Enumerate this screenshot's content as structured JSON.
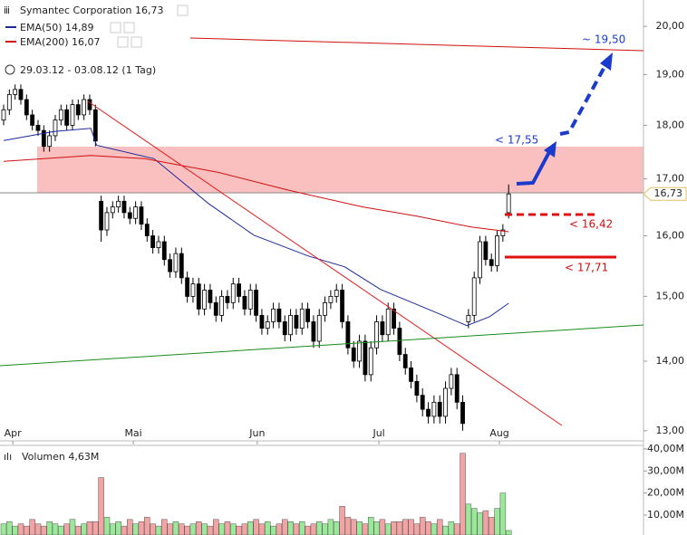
{
  "chart_data": {
    "type": "candlestick",
    "title": "Symantec Corporation 16,73",
    "date_range": "29.03.12 - 03.08.12 (1 Tag)",
    "last_price_label": "16,73",
    "log_scale": true,
    "xlim": [
      -0.63,
      111.5
    ],
    "xticks": [
      {
        "value": 1.6,
        "label": "Apr"
      },
      {
        "value": 22.6,
        "label": "Mai"
      },
      {
        "value": 44.2,
        "label": "Jun"
      },
      {
        "value": 65.4,
        "label": "Jul"
      },
      {
        "value": 86.4,
        "label": "Aug"
      }
    ],
    "ylim": [
      12.86,
      20.57
    ],
    "yticks": [
      {
        "value": 13,
        "label": "13,00"
      },
      {
        "value": 14,
        "label": "14,00"
      },
      {
        "value": 15,
        "label": "15,00"
      },
      {
        "value": 16,
        "label": "16,00"
      },
      {
        "value": 17,
        "label": "17,00"
      },
      {
        "value": 18,
        "label": "18,00"
      },
      {
        "value": 19,
        "label": "19,00"
      },
      {
        "value": 20,
        "label": "20,00"
      }
    ],
    "open": [
      18.1,
      18.3,
      18.6,
      18.7,
      18.5,
      18.2,
      18.0,
      17.9,
      17.6,
      17.8,
      18.1,
      18.3,
      18.0,
      18.4,
      18.2,
      18.5,
      18.3,
      16.6,
      16.1,
      16.4,
      16.5,
      16.6,
      16.4,
      16.3,
      16.5,
      16.2,
      16.0,
      15.8,
      15.9,
      15.6,
      15.4,
      15.7,
      15.3,
      15.0,
      15.2,
      14.8,
      15.1,
      14.9,
      14.7,
      15.0,
      14.9,
      15.2,
      15.0,
      14.8,
      15.1,
      14.7,
      14.5,
      14.6,
      14.8,
      14.6,
      14.4,
      14.7,
      14.5,
      14.8,
      14.6,
      14.3,
      14.7,
      14.9,
      15.0,
      15.1,
      14.6,
      14.2,
      14.0,
      14.3,
      13.8,
      14.2,
      14.6,
      14.4,
      14.8,
      14.5,
      14.1,
      13.9,
      13.7,
      13.5,
      13.3,
      13.2,
      13.4,
      13.2,
      13.6,
      13.8,
      13.4,
      14.6,
      14.7,
      15.3,
      15.9,
      15.6,
      15.5,
      16.0,
      16.4
    ],
    "high": [
      18.4,
      18.7,
      18.8,
      18.8,
      18.6,
      18.3,
      18.1,
      18.0,
      17.9,
      18.2,
      18.4,
      18.4,
      18.5,
      18.5,
      18.6,
      18.6,
      18.4,
      16.7,
      16.5,
      16.6,
      16.7,
      16.7,
      16.5,
      16.6,
      16.6,
      16.3,
      16.1,
      16.0,
      16.0,
      15.7,
      15.8,
      15.8,
      15.4,
      15.3,
      15.3,
      15.2,
      15.2,
      15.0,
      15.1,
      15.1,
      15.3,
      15.3,
      15.1,
      15.2,
      15.2,
      14.8,
      14.7,
      14.9,
      14.9,
      14.7,
      14.8,
      14.8,
      14.9,
      14.9,
      14.7,
      14.8,
      15.0,
      15.1,
      15.2,
      15.2,
      14.7,
      14.3,
      14.4,
      14.4,
      14.3,
      14.7,
      14.7,
      14.9,
      14.9,
      14.6,
      14.2,
      14.0,
      13.8,
      13.6,
      13.4,
      13.5,
      13.5,
      13.7,
      13.9,
      13.9,
      13.5,
      14.8,
      15.4,
      16.0,
      16.0,
      15.7,
      16.1,
      16.2,
      16.9
    ],
    "low": [
      18.0,
      18.2,
      18.5,
      18.4,
      18.1,
      17.9,
      17.8,
      17.5,
      17.5,
      17.7,
      18.0,
      17.9,
      17.9,
      18.1,
      18.1,
      18.2,
      17.6,
      15.9,
      16.0,
      16.3,
      16.4,
      16.3,
      16.2,
      16.2,
      16.1,
      15.9,
      15.7,
      15.7,
      15.5,
      15.3,
      15.3,
      15.2,
      14.9,
      14.9,
      14.7,
      14.7,
      14.8,
      14.6,
      14.6,
      14.8,
      14.8,
      14.9,
      14.7,
      14.7,
      14.6,
      14.4,
      14.4,
      14.5,
      14.5,
      14.3,
      14.3,
      14.4,
      14.4,
      14.5,
      14.2,
      14.2,
      14.6,
      14.8,
      14.9,
      14.5,
      14.1,
      13.9,
      13.9,
      13.7,
      13.7,
      14.1,
      14.3,
      14.3,
      14.4,
      14.0,
      13.8,
      13.6,
      13.4,
      13.2,
      13.1,
      13.1,
      13.1,
      13.1,
      13.5,
      13.3,
      13.0,
      14.5,
      14.6,
      15.2,
      15.5,
      15.4,
      15.4,
      15.9,
      16.3
    ],
    "close": [
      18.3,
      18.6,
      18.7,
      18.5,
      18.2,
      18.0,
      17.9,
      17.6,
      17.8,
      18.1,
      18.3,
      18.0,
      18.4,
      18.2,
      18.5,
      18.3,
      17.7,
      16.1,
      16.4,
      16.5,
      16.6,
      16.4,
      16.3,
      16.5,
      16.2,
      16.0,
      15.8,
      15.9,
      15.6,
      15.4,
      15.7,
      15.3,
      15.0,
      15.2,
      14.8,
      15.1,
      14.9,
      14.7,
      15.0,
      14.9,
      15.2,
      15.0,
      14.8,
      15.1,
      14.7,
      14.5,
      14.6,
      14.8,
      14.6,
      14.4,
      14.7,
      14.5,
      14.8,
      14.6,
      14.3,
      14.7,
      14.9,
      15.0,
      15.1,
      14.6,
      14.2,
      14.0,
      14.3,
      13.8,
      14.2,
      14.6,
      14.4,
      14.8,
      14.5,
      14.1,
      13.9,
      13.7,
      13.5,
      13.3,
      13.2,
      13.4,
      13.2,
      13.6,
      13.8,
      13.4,
      13.1,
      14.7,
      15.3,
      15.9,
      15.6,
      15.5,
      16.0,
      16.1,
      16.73
    ],
    "series": [
      {
        "name": "EMA(50) 14,89",
        "color": "#1a2a9c",
        "x": [
          0,
          8.8,
          15.2,
          16.2,
          26.2,
          35.7,
          43.6,
          53.1,
          59.4,
          65.7,
          75.2,
          80.7,
          84.7,
          88
        ],
        "values": [
          17.71,
          17.88,
          17.94,
          17.62,
          17.37,
          16.56,
          16.01,
          15.66,
          15.48,
          15.11,
          14.75,
          14.54,
          14.68,
          14.89
        ]
      },
      {
        "name": "EMA(200) 16,07",
        "color": "#d01010",
        "x": [
          0,
          15.2,
          24.6,
          37.3,
          49.9,
          62.6,
          72.0,
          81.5,
          88
        ],
        "values": [
          17.32,
          17.43,
          17.37,
          17.12,
          16.79,
          16.5,
          16.34,
          16.15,
          16.07
        ]
      }
    ],
    "annotations": [
      "~ 19,50",
      "< 17,55",
      "< 16,42",
      "< 17,71"
    ],
    "volume": {
      "label": "Volumen 4,63M",
      "ylim": [
        0.95,
        41.6
      ],
      "yticks": [
        {
          "value": 10,
          "label": "10,00M"
        },
        {
          "value": 20,
          "label": "20,00M"
        },
        {
          "value": 30,
          "label": "30,00M"
        },
        {
          "value": 40,
          "label": "40,00M"
        }
      ],
      "up_color": "#9be89b",
      "down_color": "#f2a4a4",
      "values": [
        6,
        7,
        5,
        6,
        5,
        8,
        6,
        5,
        7,
        6,
        5,
        6,
        8,
        5,
        6,
        7,
        7,
        27,
        9,
        6,
        7,
        5,
        8,
        6,
        7,
        9,
        6,
        5,
        8,
        6,
        7,
        6,
        5,
        6,
        7,
        6,
        5,
        8,
        6,
        7,
        6,
        5,
        6,
        7,
        8,
        6,
        7,
        5,
        6,
        8,
        7,
        6,
        7,
        5,
        6,
        7,
        6,
        8,
        7,
        14,
        9,
        8,
        7,
        6,
        9,
        7,
        8,
        6,
        7,
        7,
        8,
        8,
        6,
        9,
        7,
        6,
        8,
        5,
        7,
        6,
        38,
        15,
        13,
        11,
        12,
        9,
        13,
        20,
        3
      ]
    }
  }
}
